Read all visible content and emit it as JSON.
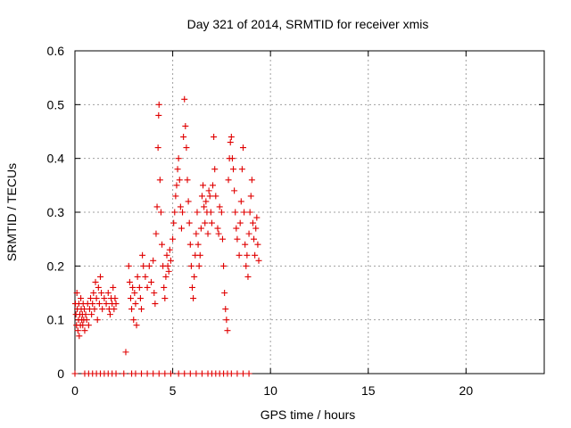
{
  "colors": {
    "points": "#e00000",
    "axis": "#000000",
    "grid": "#a0a0a0"
  },
  "chart_data": {
    "type": "scatter",
    "title": "Day 321 of 2014, SRMTID for receiver xmis",
    "xlabel": "GPS time / hours",
    "ylabel": "SRMTID / TECUs",
    "xlim": [
      0,
      24
    ],
    "ylim": [
      0,
      0.6
    ],
    "xticks": [
      0,
      5,
      10,
      15,
      20
    ],
    "xtick_labels": [
      "0",
      "5",
      "10",
      "15",
      "20"
    ],
    "yticks": [
      0,
      0.1,
      0.2,
      0.3,
      0.4,
      0.5,
      0.6
    ],
    "ytick_labels": [
      "0",
      "0.1",
      "0.2",
      "0.3",
      "0.4",
      "0.5",
      "0.6"
    ],
    "grid": true,
    "marker": "+",
    "series": [
      {
        "name": "SRMTID",
        "points": [
          [
            0.02,
            0.13
          ],
          [
            0.05,
            0.11
          ],
          [
            0.08,
            0.09
          ],
          [
            0.1,
            0.15
          ],
          [
            0.12,
            0.12
          ],
          [
            0.15,
            0.08
          ],
          [
            0.18,
            0.1
          ],
          [
            0.2,
            0.13
          ],
          [
            0.22,
            0.07
          ],
          [
            0.25,
            0.11
          ],
          [
            0.28,
            0.09
          ],
          [
            0.3,
            0.14
          ],
          [
            0.32,
            0.12
          ],
          [
            0.35,
            0.1
          ],
          [
            0.38,
            0.11
          ],
          [
            0.4,
            0.09
          ],
          [
            0.42,
            0.13
          ],
          [
            0.45,
            0.1
          ],
          [
            0.48,
            0.12
          ],
          [
            0.5,
            0.08
          ],
          [
            0.55,
            0.11
          ],
          [
            0.6,
            0.1
          ],
          [
            0.65,
            0.13
          ],
          [
            0.7,
            0.09
          ],
          [
            0.75,
            0.12
          ],
          [
            0.8,
            0.14
          ],
          [
            0.85,
            0.11
          ],
          [
            0.9,
            0.13
          ],
          [
            0.95,
            0.15
          ],
          [
            1.0,
            0.12
          ],
          [
            1.05,
            0.17
          ],
          [
            1.1,
            0.14
          ],
          [
            1.15,
            0.1
          ],
          [
            1.2,
            0.16
          ],
          [
            1.25,
            0.13
          ],
          [
            1.3,
            0.18
          ],
          [
            1.35,
            0.15
          ],
          [
            1.4,
            0.12
          ],
          [
            1.5,
            0.14
          ],
          [
            1.6,
            0.13
          ],
          [
            1.7,
            0.15
          ],
          [
            1.75,
            0.12
          ],
          [
            1.8,
            0.11
          ],
          [
            1.85,
            0.14
          ],
          [
            1.9,
            0.13
          ],
          [
            1.95,
            0.16
          ],
          [
            2.0,
            0.12
          ],
          [
            2.05,
            0.14
          ],
          [
            2.1,
            0.13
          ],
          [
            2.6,
            0.04
          ],
          [
            2.75,
            0.2
          ],
          [
            2.8,
            0.17
          ],
          [
            2.85,
            0.14
          ],
          [
            2.9,
            0.12
          ],
          [
            2.95,
            0.16
          ],
          [
            3.0,
            0.1
          ],
          [
            3.05,
            0.15
          ],
          [
            3.1,
            0.13
          ],
          [
            3.15,
            0.09
          ],
          [
            3.2,
            0.18
          ],
          [
            3.3,
            0.16
          ],
          [
            3.35,
            0.14
          ],
          [
            3.4,
            0.12
          ],
          [
            3.45,
            0.22
          ],
          [
            3.5,
            0.2
          ],
          [
            3.6,
            0.18
          ],
          [
            3.7,
            0.16
          ],
          [
            3.8,
            0.2
          ],
          [
            3.9,
            0.17
          ],
          [
            4.0,
            0.21
          ],
          [
            4.05,
            0.15
          ],
          [
            4.1,
            0.13
          ],
          [
            4.15,
            0.26
          ],
          [
            4.2,
            0.31
          ],
          [
            4.25,
            0.42
          ],
          [
            4.28,
            0.48
          ],
          [
            4.3,
            0.5
          ],
          [
            4.35,
            0.36
          ],
          [
            4.4,
            0.3
          ],
          [
            4.45,
            0.24
          ],
          [
            4.5,
            0.2
          ],
          [
            4.55,
            0.16
          ],
          [
            4.6,
            0.14
          ],
          [
            4.65,
            0.18
          ],
          [
            4.7,
            0.22
          ],
          [
            4.75,
            0.2
          ],
          [
            4.8,
            0.19
          ],
          [
            4.85,
            0.23
          ],
          [
            4.9,
            0.21
          ],
          [
            5.0,
            0.25
          ],
          [
            5.05,
            0.28
          ],
          [
            5.1,
            0.3
          ],
          [
            5.15,
            0.33
          ],
          [
            5.2,
            0.35
          ],
          [
            5.25,
            0.38
          ],
          [
            5.3,
            0.4
          ],
          [
            5.35,
            0.36
          ],
          [
            5.4,
            0.31
          ],
          [
            5.45,
            0.27
          ],
          [
            5.5,
            0.3
          ],
          [
            5.55,
            0.44
          ],
          [
            5.6,
            0.51
          ],
          [
            5.65,
            0.46
          ],
          [
            5.7,
            0.42
          ],
          [
            5.75,
            0.36
          ],
          [
            5.8,
            0.32
          ],
          [
            5.85,
            0.28
          ],
          [
            5.9,
            0.24
          ],
          [
            5.95,
            0.2
          ],
          [
            6.0,
            0.16
          ],
          [
            6.05,
            0.14
          ],
          [
            6.1,
            0.18
          ],
          [
            6.15,
            0.22
          ],
          [
            6.2,
            0.26
          ],
          [
            6.25,
            0.3
          ],
          [
            6.3,
            0.24
          ],
          [
            6.35,
            0.2
          ],
          [
            6.4,
            0.22
          ],
          [
            6.45,
            0.27
          ],
          [
            6.5,
            0.33
          ],
          [
            6.55,
            0.35
          ],
          [
            6.6,
            0.31
          ],
          [
            6.65,
            0.28
          ],
          [
            6.7,
            0.32
          ],
          [
            6.75,
            0.3
          ],
          [
            6.8,
            0.26
          ],
          [
            6.85,
            0.34
          ],
          [
            6.9,
            0.33
          ],
          [
            6.95,
            0.3
          ],
          [
            7.0,
            0.28
          ],
          [
            7.05,
            0.35
          ],
          [
            7.1,
            0.44
          ],
          [
            7.15,
            0.38
          ],
          [
            7.2,
            0.33
          ],
          [
            7.3,
            0.27
          ],
          [
            7.35,
            0.26
          ],
          [
            7.4,
            0.31
          ],
          [
            7.5,
            0.3
          ],
          [
            7.55,
            0.25
          ],
          [
            7.6,
            0.2
          ],
          [
            7.65,
            0.15
          ],
          [
            7.7,
            0.12
          ],
          [
            7.75,
            0.1
          ],
          [
            7.8,
            0.08
          ],
          [
            7.85,
            0.36
          ],
          [
            7.9,
            0.4
          ],
          [
            7.95,
            0.43
          ],
          [
            8.0,
            0.44
          ],
          [
            8.05,
            0.4
          ],
          [
            8.1,
            0.38
          ],
          [
            8.15,
            0.34
          ],
          [
            8.2,
            0.3
          ],
          [
            8.25,
            0.27
          ],
          [
            8.3,
            0.25
          ],
          [
            8.4,
            0.22
          ],
          [
            8.45,
            0.28
          ],
          [
            8.5,
            0.32
          ],
          [
            8.55,
            0.38
          ],
          [
            8.6,
            0.42
          ],
          [
            8.65,
            0.3
          ],
          [
            8.7,
            0.24
          ],
          [
            8.75,
            0.2
          ],
          [
            8.8,
            0.22
          ],
          [
            8.85,
            0.18
          ],
          [
            8.9,
            0.26
          ],
          [
            8.95,
            0.3
          ],
          [
            9.0,
            0.33
          ],
          [
            9.05,
            0.36
          ],
          [
            9.1,
            0.28
          ],
          [
            9.15,
            0.25
          ],
          [
            9.2,
            0.22
          ],
          [
            9.25,
            0.27
          ],
          [
            9.3,
            0.29
          ],
          [
            9.35,
            0.24
          ],
          [
            9.4,
            0.21
          ],
          [
            0.0,
            0.0
          ],
          [
            0.5,
            0.0
          ],
          [
            0.7,
            0.0
          ],
          [
            0.9,
            0.0
          ],
          [
            1.1,
            0.0
          ],
          [
            1.3,
            0.0
          ],
          [
            1.5,
            0.0
          ],
          [
            1.7,
            0.0
          ],
          [
            1.9,
            0.0
          ],
          [
            2.1,
            0.0
          ],
          [
            2.5,
            0.0
          ],
          [
            2.9,
            0.0
          ],
          [
            3.1,
            0.0
          ],
          [
            3.4,
            0.0
          ],
          [
            3.7,
            0.0
          ],
          [
            4.0,
            0.0
          ],
          [
            4.3,
            0.0
          ],
          [
            4.6,
            0.0
          ],
          [
            4.9,
            0.0
          ],
          [
            5.3,
            0.0
          ],
          [
            5.6,
            0.0
          ],
          [
            5.9,
            0.0
          ],
          [
            6.2,
            0.0
          ],
          [
            6.5,
            0.0
          ],
          [
            6.8,
            0.0
          ],
          [
            7.0,
            0.0
          ],
          [
            7.2,
            0.0
          ],
          [
            7.4,
            0.0
          ],
          [
            7.6,
            0.0
          ],
          [
            7.8,
            0.0
          ],
          [
            8.0,
            0.0
          ],
          [
            8.3,
            0.0
          ],
          [
            8.6,
            0.0
          ],
          [
            8.9,
            0.0
          ]
        ]
      }
    ]
  }
}
